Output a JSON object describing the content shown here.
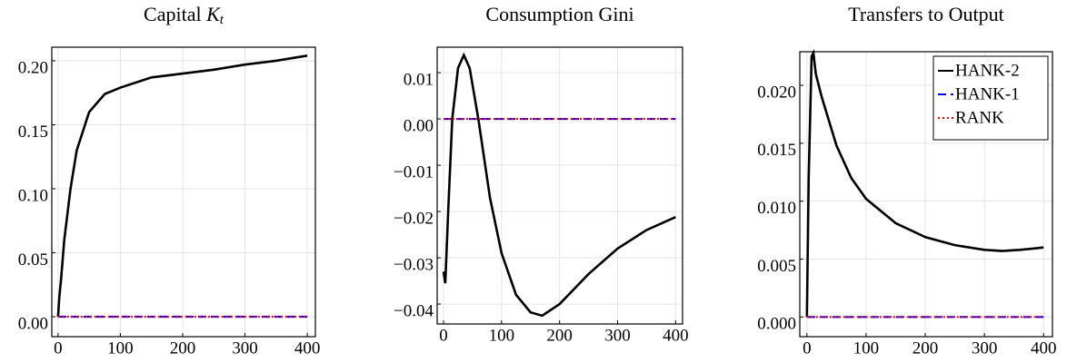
{
  "chart_data": [
    {
      "type": "line",
      "title": "Capital",
      "title_symbol": "K",
      "title_subscript": "t",
      "x": [
        0,
        2,
        5,
        10,
        20,
        30,
        50,
        75,
        100,
        150,
        200,
        250,
        300,
        350,
        400
      ],
      "series": [
        {
          "color": "#000000",
          "dash": "solid",
          "values": [
            0,
            0.015,
            0.03,
            0.06,
            0.1,
            0.13,
            0.16,
            0.174,
            0.179,
            0.187,
            0.19,
            0.193,
            0.197,
            0.2,
            0.204
          ]
        },
        {
          "color": "#0000ff",
          "dash": "dashed",
          "values": [
            0,
            0,
            0,
            0,
            0,
            0,
            0,
            0,
            0,
            0,
            0,
            0,
            0,
            0,
            0
          ]
        },
        {
          "color": "#ff0000",
          "dash": "dotted",
          "values": [
            0,
            0,
            0,
            0,
            0,
            0,
            0,
            0,
            0,
            0,
            0,
            0,
            0,
            0,
            0
          ]
        }
      ],
      "xlim": [
        -10,
        413
      ],
      "ylim": [
        -0.0156,
        0.2106
      ],
      "xticks": [
        0,
        100,
        200,
        300,
        400
      ],
      "yticks": [
        {
          "value": 0,
          "label": "0.00"
        },
        0.05,
        {
          "value": 0.1,
          "label": "0.10"
        },
        0.15,
        {
          "value": 0.2,
          "label": "0.20"
        }
      ],
      "grid": true
    },
    {
      "type": "line",
      "title": "Consumption Gini",
      "x": [
        0,
        3,
        8,
        15,
        25,
        35,
        45,
        60,
        80,
        100,
        125,
        150,
        170,
        200,
        250,
        300,
        350,
        400
      ],
      "series": [
        {
          "color": "#000000",
          "dash": "solid",
          "values": [
            -0.033,
            -0.0355,
            -0.02,
            0.0,
            0.011,
            0.0138,
            0.011,
            0.0,
            -0.017,
            -0.029,
            -0.038,
            -0.0418,
            -0.0425,
            -0.04,
            -0.0335,
            -0.028,
            -0.024,
            -0.0212
          ]
        },
        {
          "color": "#0000ff",
          "dash": "dashed",
          "values": [
            0,
            0,
            0,
            0,
            0,
            0,
            0,
            0,
            0,
            0,
            0,
            0,
            0,
            0,
            0,
            0,
            0,
            0
          ]
        },
        {
          "color": "#ff0000",
          "dash": "dotted",
          "values": [
            0,
            0,
            0,
            0,
            0,
            0,
            0,
            0,
            0,
            0,
            0,
            0,
            0,
            0,
            0,
            0,
            0,
            0
          ]
        }
      ],
      "xlim": [
        -11,
        412
      ],
      "ylim": [
        -0.0443,
        0.0155
      ],
      "xticks": [
        0,
        100,
        200,
        300,
        400
      ],
      "yticks": [
        {
          "value": -0.04,
          "label": "−0.04"
        },
        {
          "value": -0.03,
          "label": "−0.03"
        },
        {
          "value": -0.02,
          "label": "−0.02"
        },
        {
          "value": -0.01,
          "label": "−0.01"
        },
        {
          "value": 0,
          "label": "0.00"
        },
        0.01
      ],
      "grid": true
    },
    {
      "type": "line",
      "title": "Transfers to Output",
      "x": [
        0,
        3,
        8,
        11,
        15,
        25,
        50,
        75,
        100,
        150,
        200,
        250,
        300,
        330,
        360,
        400
      ],
      "series": [
        {
          "name": "HANK-2",
          "color": "#000000",
          "dash": "solid",
          "values": [
            0,
            0.012,
            0.0225,
            0.0228,
            0.021,
            0.019,
            0.0148,
            0.012,
            0.0102,
            0.0081,
            0.0069,
            0.0062,
            0.0058,
            0.0057,
            0.0058,
            0.006
          ]
        },
        {
          "name": "HANK-1",
          "color": "#0000ff",
          "dash": "dashed",
          "values": [
            0,
            0,
            0,
            0,
            0,
            0,
            0,
            0,
            0,
            0,
            0,
            0,
            0,
            0,
            0,
            0
          ]
        },
        {
          "name": "RANK",
          "color": "#ff0000",
          "dash": "dotted",
          "values": [
            0,
            0,
            0,
            0,
            0,
            0,
            0,
            0,
            0,
            0,
            0,
            0,
            0,
            0,
            0,
            0
          ]
        }
      ],
      "xlim": [
        -12,
        415
      ],
      "ylim": [
        -0.0017,
        0.0229
      ],
      "xticks": [
        0,
        100,
        200,
        300,
        400
      ],
      "yticks": [
        {
          "value": 0,
          "label": "0.000"
        },
        {
          "value": 0.005,
          "label": "0.005"
        },
        {
          "value": 0.01,
          "label": "0.010"
        },
        {
          "value": 0.015,
          "label": "0.015"
        },
        {
          "value": 0.02,
          "label": "0.020"
        }
      ],
      "grid": true,
      "legend": "upper right"
    }
  ]
}
